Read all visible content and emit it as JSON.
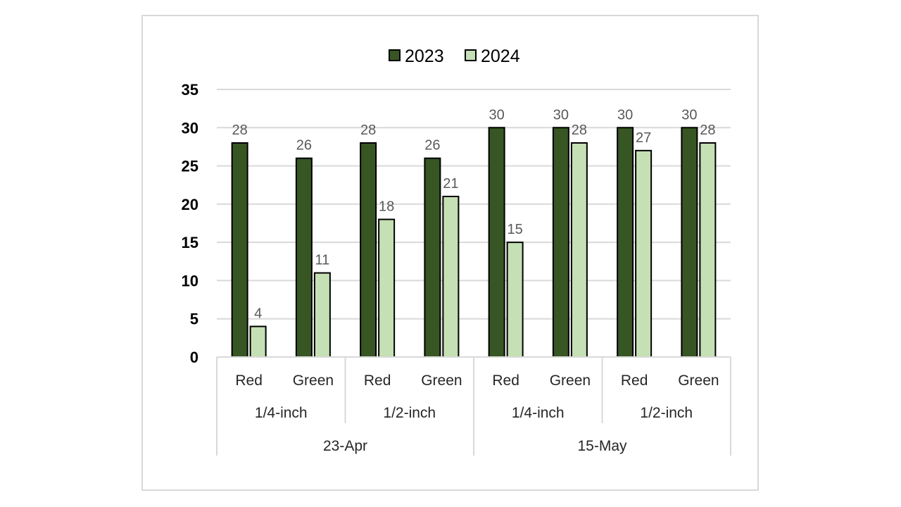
{
  "chart_data": {
    "type": "bar",
    "title": "",
    "xlabel": "",
    "ylabel": "",
    "ylim": [
      0,
      35
    ],
    "yticks": [
      0,
      5,
      10,
      15,
      20,
      25,
      30,
      35
    ],
    "grid": true,
    "legend_position": "top",
    "categories": [
      {
        "date": "23-Apr",
        "size": "1/4-inch",
        "color": "Red"
      },
      {
        "date": "23-Apr",
        "size": "1/4-inch",
        "color": "Green"
      },
      {
        "date": "23-Apr",
        "size": "1/2-inch",
        "color": "Red"
      },
      {
        "date": "23-Apr",
        "size": "1/2-inch",
        "color": "Green"
      },
      {
        "date": "15-May",
        "size": "1/4-inch",
        "color": "Red"
      },
      {
        "date": "15-May",
        "size": "1/4-inch",
        "color": "Green"
      },
      {
        "date": "15-May",
        "size": "1/2-inch",
        "color": "Red"
      },
      {
        "date": "15-May",
        "size": "1/2-inch",
        "color": "Green"
      }
    ],
    "series": [
      {
        "name": "2023",
        "color": "#375623",
        "values": [
          28,
          26,
          28,
          26,
          30,
          30,
          30,
          30
        ]
      },
      {
        "name": "2024",
        "color": "#c5e0b4",
        "values": [
          4,
          11,
          18,
          21,
          15,
          28,
          27,
          28
        ]
      }
    ]
  }
}
